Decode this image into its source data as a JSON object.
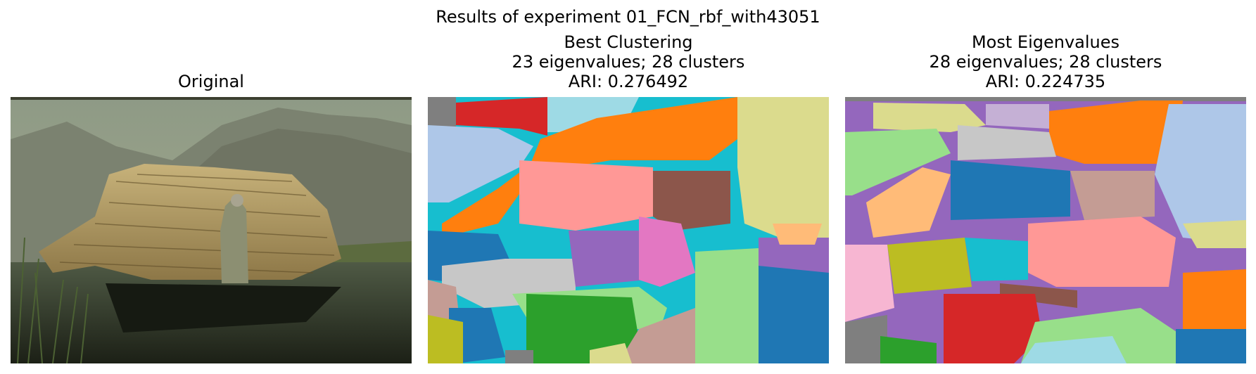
{
  "figure": {
    "suptitle": "Results of experiment 01_FCN_rbf_with43051",
    "panels": [
      {
        "title_lines": [
          "Original"
        ]
      },
      {
        "title_lines": [
          "Best Clustering",
          "23 eigenvalues; 28 clusters",
          "ARI: 0.276492"
        ]
      },
      {
        "title_lines": [
          "Most Eigenvalues",
          "28 eigenvalues; 28 clusters",
          "ARI: 0.224735"
        ]
      }
    ]
  },
  "colors": {
    "tab_blue": "#1f77b4",
    "tab_orange": "#ff7f0e",
    "tab_green": "#2ca02c",
    "tab_red": "#d62728",
    "tab_purple": "#9467bd",
    "tab_brown": "#8c564b",
    "tab_pink": "#e377c2",
    "tab_gray": "#7f7f7f",
    "tab_olive": "#bcbd22",
    "tab_cyan": "#17becf",
    "light_blue": "#aec7e8",
    "light_orange": "#ffbb78",
    "light_green": "#98df8a",
    "light_red": "#ff9896",
    "light_purple": "#c5b0d5",
    "light_brown": "#c49c94",
    "light_pink": "#f7b6d2",
    "light_gray": "#c7c7c7",
    "light_olive": "#dbdb8d",
    "light_cyan": "#9edae5"
  }
}
